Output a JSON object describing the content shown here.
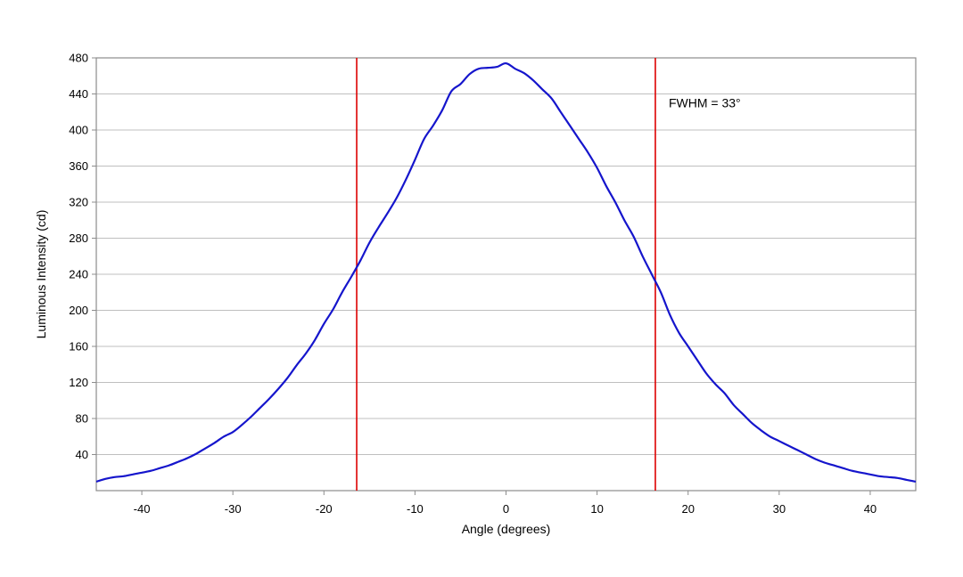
{
  "chart_data": {
    "type": "line",
    "title": "",
    "xlabel": "Angle (degrees)",
    "ylabel": "Luminous Intensity (cd)",
    "xlim": [
      -45,
      45
    ],
    "ylim": [
      0,
      480
    ],
    "xticks": [
      "-40",
      "-30",
      "-20",
      "-10",
      "0",
      "10",
      "20",
      "30",
      "40"
    ],
    "yticks": [
      "40",
      "80",
      "120",
      "160",
      "200",
      "240",
      "280",
      "320",
      "360",
      "400",
      "440",
      "480"
    ],
    "grid": "horizontal",
    "colors": {
      "series": "#1515cc",
      "markers": "#dd0000",
      "grid": "#bfbfbf",
      "frame": "#8c8c8c"
    },
    "series": [
      {
        "x": [
          -45,
          -44,
          -43,
          -42,
          -41,
          -40,
          -39,
          -38,
          -37,
          -36,
          -35,
          -34,
          -33,
          -32,
          -31,
          -30,
          -29,
          -28,
          -27,
          -26,
          -25,
          -24,
          -23,
          -22,
          -21,
          -20,
          -19,
          -18,
          -17,
          -16,
          -15,
          -14,
          -13,
          -12,
          -11,
          -10,
          -9,
          -8,
          -7,
          -6,
          -5,
          -4,
          -3,
          -2,
          -1,
          0,
          1,
          2,
          3,
          4,
          5,
          6,
          7,
          8,
          9,
          10,
          11,
          12,
          13,
          14,
          15,
          16,
          17,
          18,
          19,
          20,
          21,
          22,
          23,
          24,
          25,
          26,
          27,
          28,
          29,
          30,
          31,
          32,
          33,
          34,
          35,
          36,
          37,
          38,
          39,
          40,
          41,
          42,
          43,
          44,
          45
        ],
        "values": [
          10,
          13,
          15,
          16,
          18,
          20,
          22,
          25,
          28,
          32,
          36,
          41,
          47,
          53,
          60,
          65,
          73,
          82,
          92,
          102,
          113,
          125,
          139,
          152,
          167,
          185,
          201,
          220,
          237,
          255,
          275,
          292,
          308,
          325,
          345,
          367,
          390,
          405,
          422,
          443,
          451,
          462,
          468,
          469,
          470,
          474,
          468,
          463,
          455,
          445,
          435,
          420,
          405,
          390,
          375,
          358,
          338,
          320,
          300,
          282,
          260,
          240,
          220,
          195,
          175,
          160,
          145,
          130,
          118,
          108,
          95,
          85,
          75,
          67,
          60,
          55,
          50,
          45,
          40,
          35,
          31,
          28,
          25,
          22,
          20,
          18,
          16,
          15,
          14,
          12,
          10
        ]
      }
    ],
    "vlines": [
      -16.4,
      16.4
    ],
    "annotation": "FWHM = 33°"
  }
}
